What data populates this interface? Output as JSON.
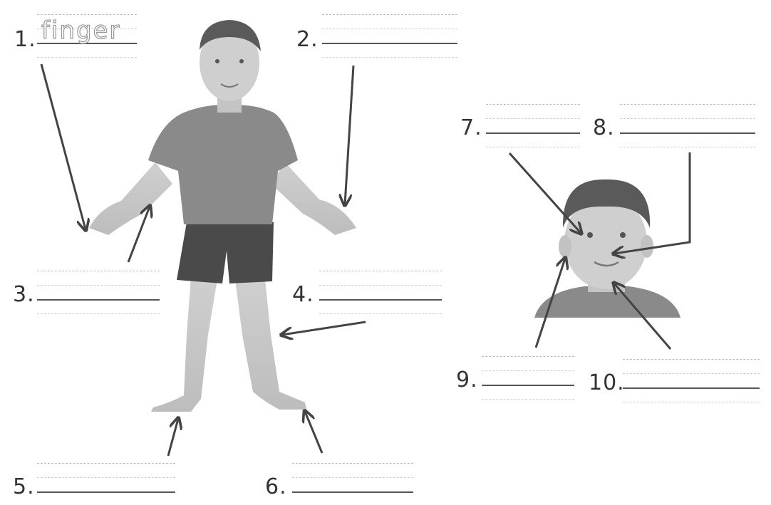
{
  "worksheet": {
    "items": [
      {
        "number": "1.",
        "answer": "finger"
      },
      {
        "number": "2.",
        "answer": ""
      },
      {
        "number": "3.",
        "answer": ""
      },
      {
        "number": "4.",
        "answer": ""
      },
      {
        "number": "5.",
        "answer": ""
      },
      {
        "number": "6.",
        "answer": ""
      },
      {
        "number": "7.",
        "answer": ""
      },
      {
        "number": "8.",
        "answer": ""
      },
      {
        "number": "9.",
        "answer": ""
      },
      {
        "number": "10.",
        "answer": ""
      }
    ]
  },
  "colors": {
    "shirt": "#8a8a8a",
    "shorts": "#4a4a4a",
    "skin": "#c9c9c9",
    "hair": "#5a5a5a",
    "arrow": "#444444"
  }
}
